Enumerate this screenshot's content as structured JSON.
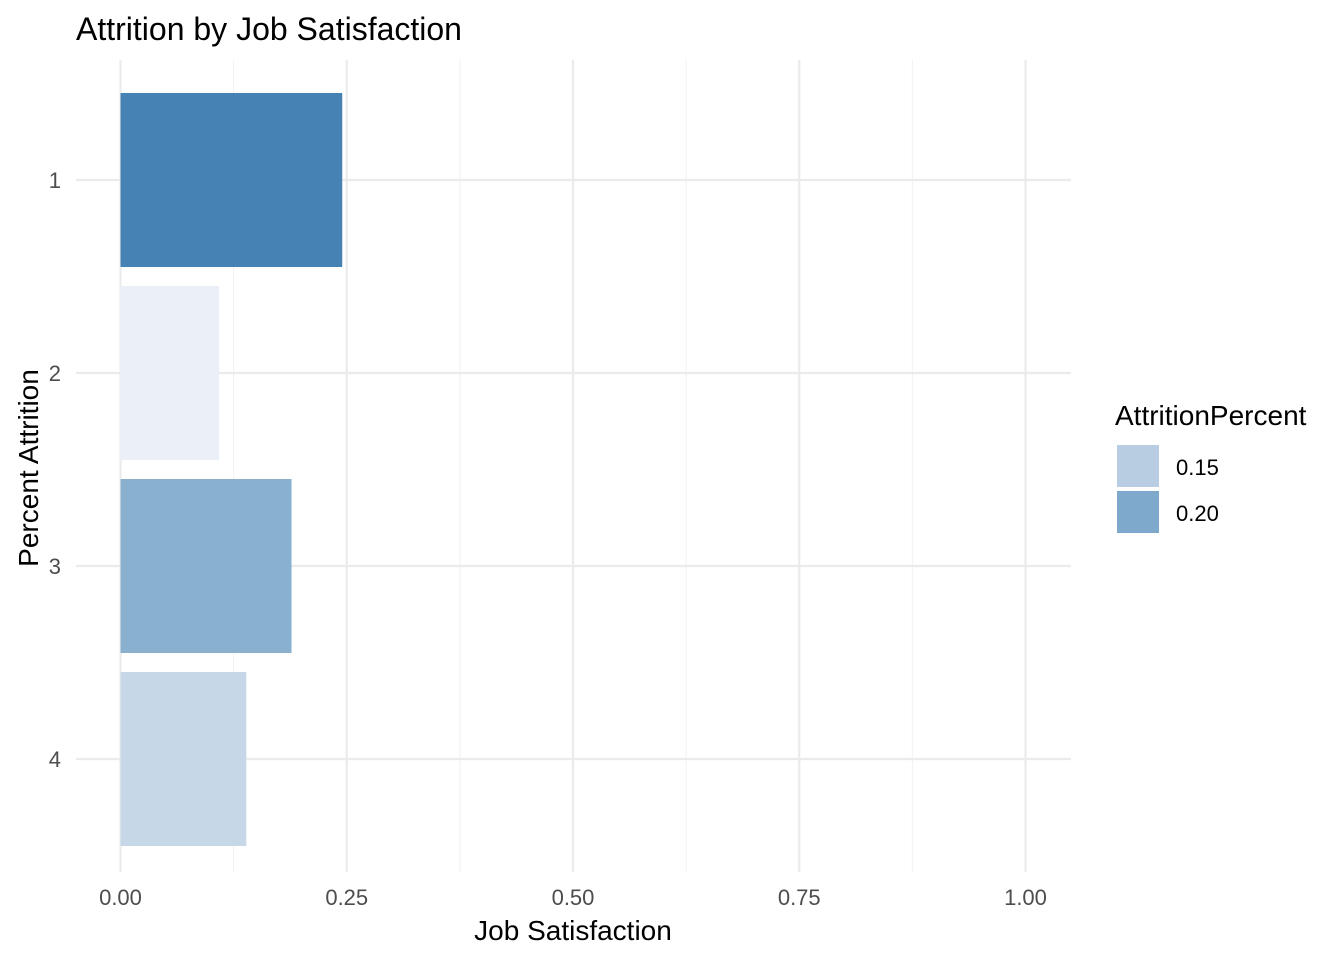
{
  "chart_data": {
    "type": "bar",
    "orientation": "horizontal",
    "title": "Attrition by Job Satisfaction",
    "xlabel": "Job Satisfaction",
    "ylabel": "Percent Attrition",
    "categories": [
      "1",
      "2",
      "3",
      "4"
    ],
    "values": [
      0.245,
      0.109,
      0.189,
      0.139
    ],
    "fill_colors": [
      "#4682B4",
      "#EBF0F8",
      "#8AB0CF",
      "#C6D8E8"
    ],
    "xlim": [
      0,
      1.05
    ],
    "xticks": [
      "0.00",
      "0.25",
      "0.50",
      "0.75",
      "1.00"
    ],
    "xtick_values": [
      0,
      0.25,
      0.5,
      0.75,
      1.0
    ],
    "grid": true,
    "legend": {
      "title": "AttritionPercent",
      "placement": "right",
      "items": [
        {
          "label": "0.15",
          "color": "#B8CDE2"
        },
        {
          "label": "0.20",
          "color": "#7EA8CC"
        }
      ]
    }
  }
}
